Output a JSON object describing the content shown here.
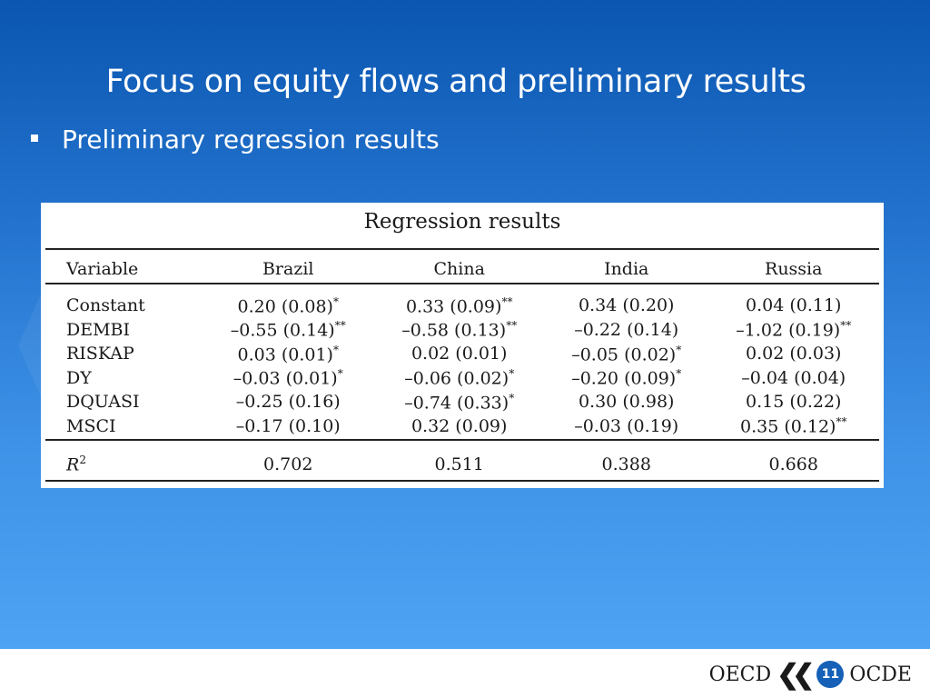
{
  "slide": {
    "title": "Focus on equity flows and preliminary results",
    "bullet": "Preliminary regression results",
    "page_number": "11"
  },
  "table": {
    "caption": "Regression results",
    "header": [
      "Variable",
      "Brazil",
      "China",
      "India",
      "Russia"
    ],
    "rows": [
      {
        "variable": "Constant",
        "cells": [
          {
            "v": "0.20 (0.08)",
            "s": "*"
          },
          {
            "v": "0.33 (0.09)",
            "s": "**"
          },
          {
            "v": "0.34 (0.20)",
            "s": ""
          },
          {
            "v": "0.04 (0.11)",
            "s": ""
          }
        ]
      },
      {
        "variable": "DEMBI",
        "cells": [
          {
            "v": "–0.55 (0.14)",
            "s": "**"
          },
          {
            "v": "–0.58 (0.13)",
            "s": "**"
          },
          {
            "v": "–0.22 (0.14)",
            "s": ""
          },
          {
            "v": "–1.02 (0.19)",
            "s": "**"
          }
        ]
      },
      {
        "variable": "RISKAP",
        "cells": [
          {
            "v": "0.03 (0.01)",
            "s": "*"
          },
          {
            "v": "0.02 (0.01)",
            "s": ""
          },
          {
            "v": "–0.05 (0.02)",
            "s": "*"
          },
          {
            "v": "0.02 (0.03)",
            "s": ""
          }
        ]
      },
      {
        "variable": "DY",
        "cells": [
          {
            "v": "–0.03 (0.01)",
            "s": "*"
          },
          {
            "v": "–0.06 (0.02)",
            "s": "*"
          },
          {
            "v": "–0.20 (0.09)",
            "s": "*"
          },
          {
            "v": "–0.04 (0.04)",
            "s": ""
          }
        ]
      },
      {
        "variable": "DQUASI",
        "cells": [
          {
            "v": "–0.25 (0.16)",
            "s": ""
          },
          {
            "v": "–0.74 (0.33)",
            "s": "*"
          },
          {
            "v": "0.30 (0.98)",
            "s": ""
          },
          {
            "v": "0.15 (0.22)",
            "s": ""
          }
        ]
      },
      {
        "variable": "MSCI",
        "cells": [
          {
            "v": "–0.17 (0.10)",
            "s": ""
          },
          {
            "v": "0.32 (0.09)",
            "s": ""
          },
          {
            "v": "–0.03 (0.19)",
            "s": ""
          },
          {
            "v": "0.35 (0.12)",
            "s": "**"
          }
        ]
      }
    ],
    "r2": {
      "label": "R",
      "exp": "2",
      "values": [
        "0.702",
        "0.511",
        "0.388",
        "0.668"
      ]
    }
  },
  "footer": {
    "logo_left": "OECD",
    "logo_right": "OCDE",
    "logo_chevrons": "❮❮",
    "logo_icon": "oecd-chevron-logo"
  },
  "colors": {
    "background_top": "#0a56b0",
    "background_bottom": "#4fa3f4",
    "badge": "#1660b8"
  }
}
